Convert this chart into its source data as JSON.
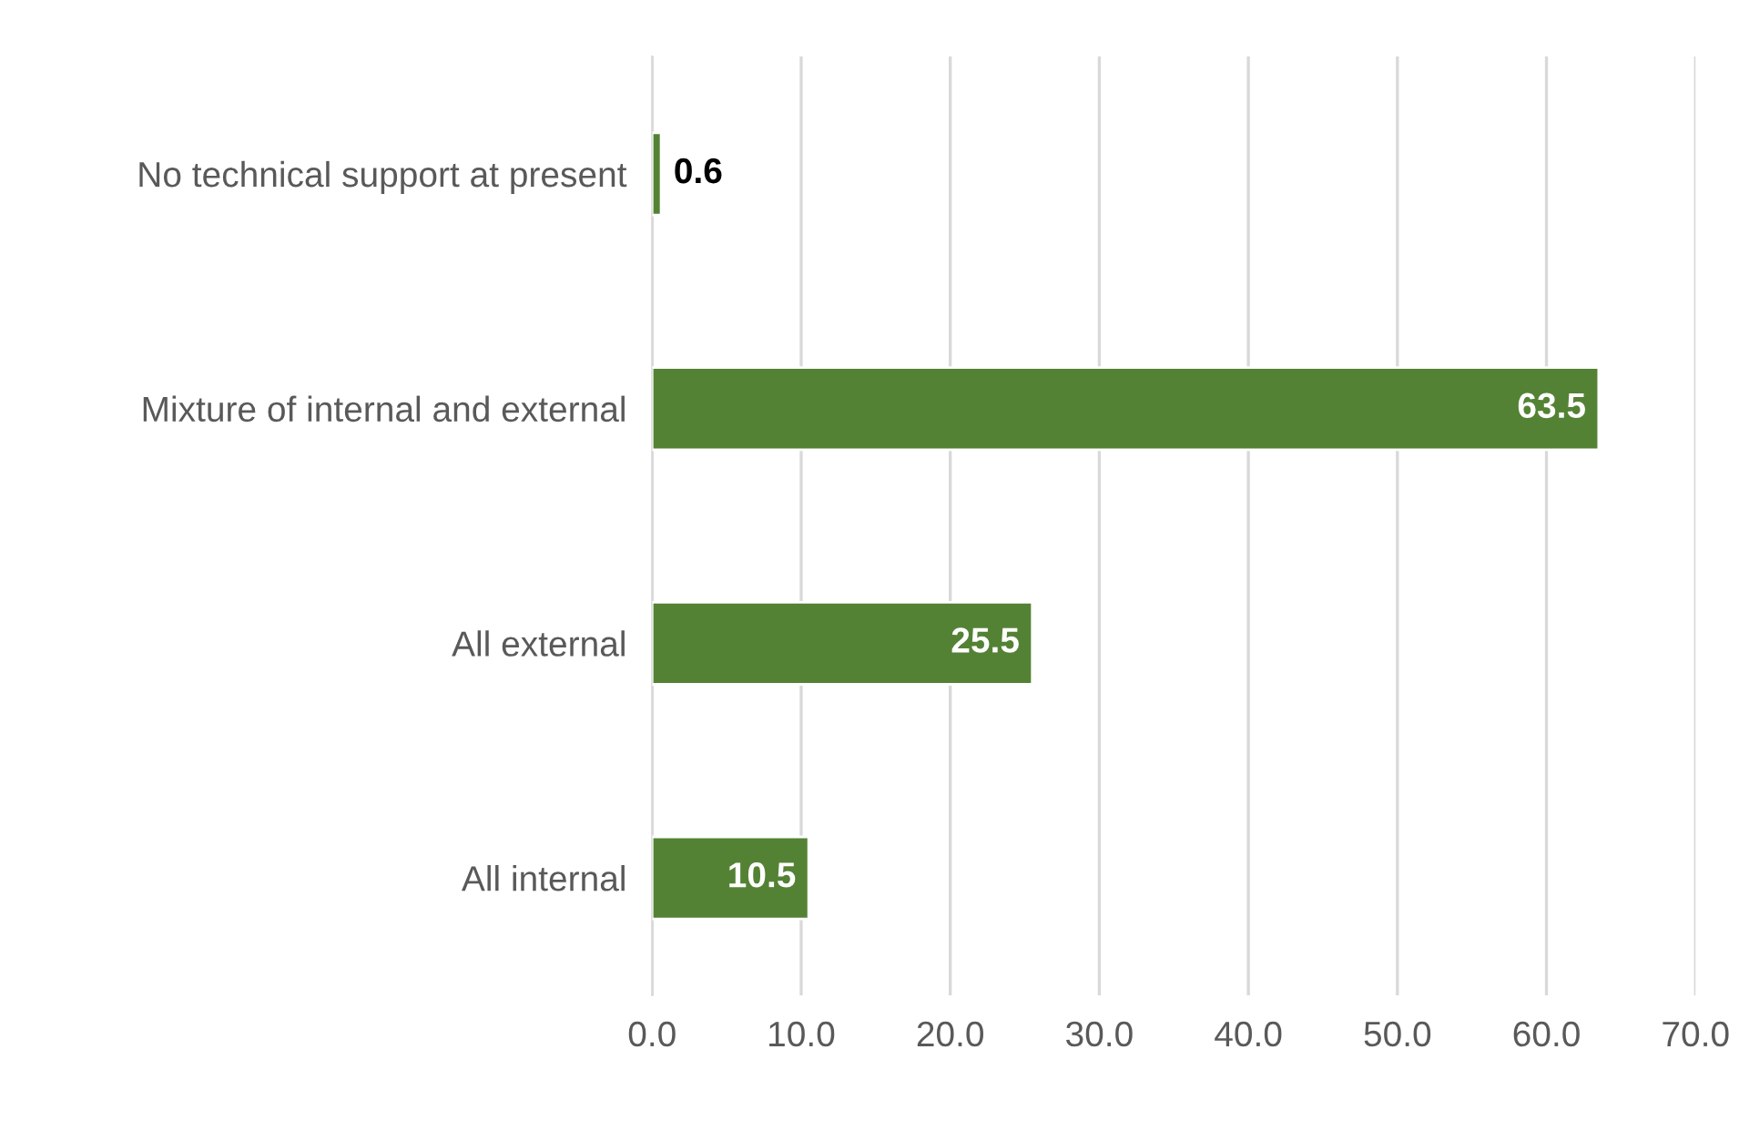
{
  "chart_data": {
    "type": "bar",
    "orientation": "horizontal",
    "categories": [
      "No technical support at present",
      "Mixture of internal and external",
      "All external",
      "All internal"
    ],
    "values": [
      0.6,
      63.5,
      25.5,
      10.5
    ],
    "color": "#548235",
    "data_labels": true,
    "xlim": [
      0,
      70
    ],
    "xticks": [
      {
        "value": 0,
        "label": "0.0"
      },
      {
        "value": 10,
        "label": "10.0"
      },
      {
        "value": 20,
        "label": "20.0"
      },
      {
        "value": 30,
        "label": "30.0"
      },
      {
        "value": 40,
        "label": "40.0"
      },
      {
        "value": 50,
        "label": "50.0"
      },
      {
        "value": 60,
        "label": "60.0"
      },
      {
        "value": 70,
        "label": "70.0"
      }
    ],
    "grid": "x",
    "legend": false
  }
}
